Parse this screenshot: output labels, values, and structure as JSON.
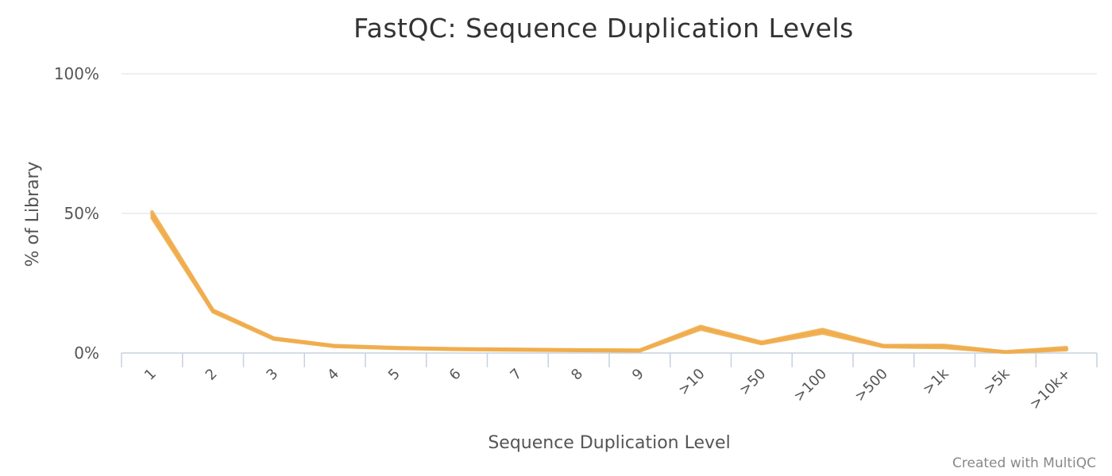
{
  "chart_data": {
    "type": "line",
    "title": "FastQC: Sequence Duplication Levels",
    "xlabel": "Sequence Duplication Level",
    "ylabel": "% of Library",
    "credit": "Created with MultiQC",
    "categories": [
      "1",
      "2",
      "3",
      "4",
      "5",
      "6",
      "7",
      "8",
      "9",
      ">10",
      ">50",
      ">100",
      ">500",
      ">1k",
      ">5k",
      ">10k+"
    ],
    "yticks": [
      "0%",
      "50%",
      "100%"
    ],
    "ylim": [
      0,
      100
    ],
    "grid": true,
    "legend": "none",
    "color": "#f0ad4e",
    "series": [
      {
        "values": [
          50.5,
          15.3,
          5.3,
          2.6,
          1.9,
          1.5,
          1.3,
          1.1,
          1.0,
          9.5,
          3.8,
          8.4,
          2.6,
          2.7,
          0.4,
          1.9
        ]
      },
      {
        "values": [
          48.5,
          14.8,
          5.0,
          2.4,
          1.7,
          1.3,
          1.1,
          0.9,
          0.8,
          8.6,
          3.4,
          7.2,
          2.3,
          2.0,
          0.3,
          1.2
        ]
      },
      {
        "values": [
          49.5,
          15.1,
          5.2,
          2.5,
          1.8,
          1.4,
          1.2,
          1.0,
          0.9,
          9.1,
          3.6,
          7.8,
          2.5,
          2.4,
          0.35,
          1.5
        ]
      }
    ]
  }
}
